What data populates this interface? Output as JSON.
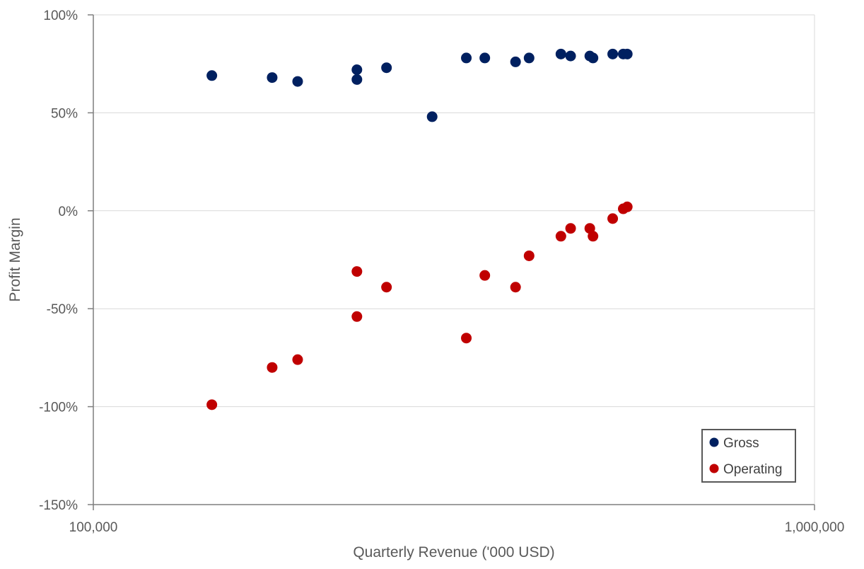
{
  "chart_data": {
    "type": "scatter",
    "title": "",
    "xlabel": "Quarterly Revenue ('000 USD)",
    "ylabel": "Profit Margin",
    "x_scale": "log",
    "xlim": [
      100000,
      1000000
    ],
    "ylim": [
      -1.5,
      1.0
    ],
    "x_ticks": [
      100000,
      1000000
    ],
    "x_tick_labels": [
      "100,000",
      "1,000,000"
    ],
    "y_ticks": [
      1.0,
      0.5,
      0.0,
      -0.5,
      -1.0,
      -1.5
    ],
    "y_tick_labels": [
      "100%",
      "50%",
      "0%",
      "-50%",
      "-100%",
      "-150%"
    ],
    "grid": "horizontal",
    "legend_position": "bottom-right",
    "series": [
      {
        "name": "Gross",
        "color": "#002060",
        "points": [
          {
            "x": 146000,
            "y": 0.69
          },
          {
            "x": 177000,
            "y": 0.68
          },
          {
            "x": 192000,
            "y": 0.66
          },
          {
            "x": 232000,
            "y": 0.72
          },
          {
            "x": 232000,
            "y": 0.67
          },
          {
            "x": 255000,
            "y": 0.73
          },
          {
            "x": 295000,
            "y": 0.48
          },
          {
            "x": 329000,
            "y": 0.78
          },
          {
            "x": 349000,
            "y": 0.78
          },
          {
            "x": 385000,
            "y": 0.76
          },
          {
            "x": 402000,
            "y": 0.78
          },
          {
            "x": 445000,
            "y": 0.8
          },
          {
            "x": 459000,
            "y": 0.79
          },
          {
            "x": 488000,
            "y": 0.79
          },
          {
            "x": 493000,
            "y": 0.78
          },
          {
            "x": 525000,
            "y": 0.8
          },
          {
            "x": 543000,
            "y": 0.8
          },
          {
            "x": 550000,
            "y": 0.8
          }
        ]
      },
      {
        "name": "Operating",
        "color": "#C00000",
        "points": [
          {
            "x": 146000,
            "y": -0.99
          },
          {
            "x": 177000,
            "y": -0.8
          },
          {
            "x": 192000,
            "y": -0.76
          },
          {
            "x": 232000,
            "y": -0.31
          },
          {
            "x": 232000,
            "y": -0.54
          },
          {
            "x": 255000,
            "y": -0.39
          },
          {
            "x": 329000,
            "y": -0.65
          },
          {
            "x": 349000,
            "y": -0.33
          },
          {
            "x": 385000,
            "y": -0.39
          },
          {
            "x": 402000,
            "y": -0.23
          },
          {
            "x": 445000,
            "y": -0.13
          },
          {
            "x": 459000,
            "y": -0.09
          },
          {
            "x": 488000,
            "y": -0.09
          },
          {
            "x": 493000,
            "y": -0.13
          },
          {
            "x": 525000,
            "y": -0.04
          },
          {
            "x": 543000,
            "y": 0.01
          },
          {
            "x": 550000,
            "y": 0.02
          }
        ]
      }
    ]
  }
}
